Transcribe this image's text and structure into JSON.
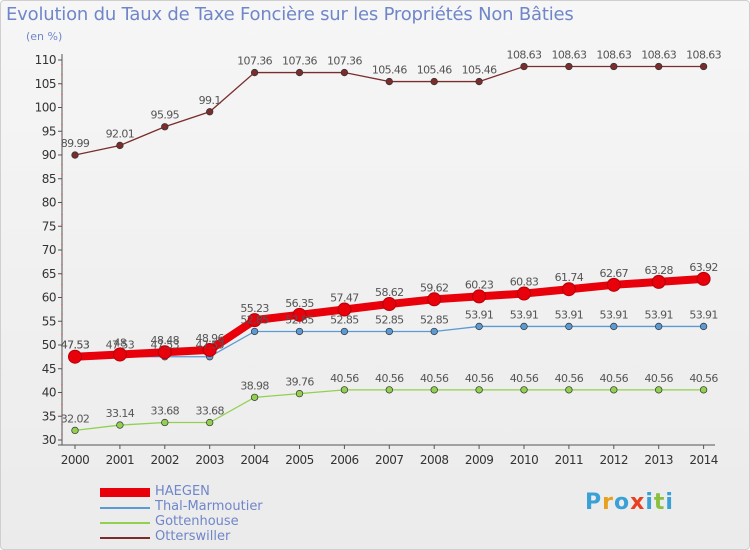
{
  "header": {
    "title": "Evolution du Taux de Taxe Foncière sur les Propriétés Non Bâties",
    "unit": "(en %)"
  },
  "logo": {
    "letters": [
      "P",
      "r",
      "o",
      "x",
      "i",
      "t",
      "i"
    ],
    "colors": [
      "#3aa0d8",
      "#e8a020",
      "#3aa0d8",
      "#e84020",
      "#3aa0d8",
      "#8ac040",
      "#3aa0d8"
    ]
  },
  "chart_data": {
    "type": "line",
    "title": "Evolution du Taux de Taxe Foncière sur les Propriétés Non Bâties",
    "ylabel": "(en %)",
    "xlabel": "",
    "x": [
      "2000",
      "2001",
      "2002",
      "2003",
      "2004",
      "2005",
      "2006",
      "2007",
      "2008",
      "2009",
      "2010",
      "2011",
      "2012",
      "2013",
      "2014"
    ],
    "ylim": [
      30,
      110
    ],
    "yticks": [
      30,
      35,
      40,
      45,
      50,
      55,
      60,
      65,
      70,
      75,
      80,
      85,
      90,
      95,
      100,
      105,
      110
    ],
    "grid": false,
    "series": [
      {
        "name": "HAEGEN",
        "color": "#e8000b",
        "thick": true,
        "values": [
          47.53,
          48,
          48.48,
          48.96,
          55.23,
          56.35,
          57.47,
          58.62,
          59.62,
          60.23,
          60.83,
          61.74,
          62.67,
          63.28,
          63.92
        ],
        "labels": [
          "47.53",
          "48",
          "48.48",
          "48.96",
          "55.23",
          "56.35",
          "57.47",
          "58.62",
          "59.62",
          "60.23",
          "60.83",
          "61.74",
          "62.67",
          "63.28",
          "63.92"
        ]
      },
      {
        "name": "Thal-Marmoutier",
        "color": "#5b9bd5",
        "thick": false,
        "values": [
          47.53,
          47.53,
          47.53,
          47.53,
          52.85,
          52.85,
          52.85,
          52.85,
          52.85,
          53.91,
          53.91,
          53.91,
          53.91,
          53.91,
          53.91
        ],
        "labels": [
          "47.53",
          "47.53",
          "47.53",
          "47.53",
          "52.85",
          "52.85",
          "52.85",
          "52.85",
          "52.85",
          "53.91",
          "53.91",
          "53.91",
          "53.91",
          "53.91",
          "53.91"
        ]
      },
      {
        "name": "Gottenhouse",
        "color": "#92d050",
        "thick": false,
        "values": [
          32.02,
          33.14,
          33.68,
          33.68,
          38.98,
          39.76,
          40.56,
          40.56,
          40.56,
          40.56,
          40.56,
          40.56,
          40.56,
          40.56,
          40.56
        ],
        "labels": [
          "32.02",
          "33.14",
          "33.68",
          "33.68",
          "38.98",
          "39.76",
          "40.56",
          "40.56",
          "40.56",
          "40.56",
          "40.56",
          "40.56",
          "40.56",
          "40.56",
          "40.56"
        ]
      },
      {
        "name": "Otterswiller",
        "color": "#7b2d2d",
        "thick": false,
        "values": [
          89.99,
          92.01,
          95.95,
          99.1,
          107.36,
          107.36,
          107.36,
          105.46,
          105.46,
          105.46,
          108.63,
          108.63,
          108.63,
          108.63,
          108.63
        ],
        "labels": [
          "89.99",
          "92.01",
          "95.95",
          "99.1",
          "107.36",
          "107.36",
          "107.36",
          "105.46",
          "105.46",
          "105.46",
          "108.63",
          "108.63",
          "108.63",
          "108.63",
          "108.63"
        ]
      }
    ]
  }
}
